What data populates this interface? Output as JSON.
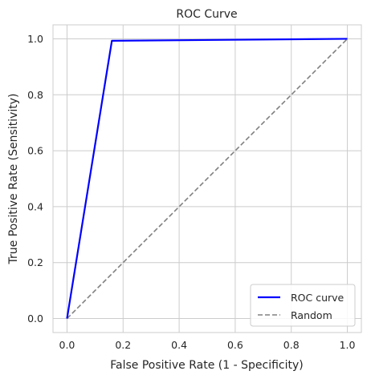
{
  "chart_data": {
    "type": "line",
    "title": "ROC Curve",
    "xlabel": "False Positive Rate (1 - Specificity)",
    "ylabel": "True Positive Rate (Sensitivity)",
    "xlim": [
      -0.05,
      1.05
    ],
    "ylim": [
      -0.05,
      1.05
    ],
    "xticks": [
      "0.0",
      "0.2",
      "0.4",
      "0.6",
      "0.8",
      "1.0"
    ],
    "yticks": [
      "0.0",
      "0.2",
      "0.4",
      "0.6",
      "0.8",
      "1.0"
    ],
    "grid": true,
    "legend_position": "lower-right",
    "series": [
      {
        "name": "ROC curve",
        "color": "#0000ff",
        "style": "solid",
        "x": [
          0.0,
          0.16,
          1.0
        ],
        "y": [
          0.0,
          0.993,
          1.0
        ]
      },
      {
        "name": "Random",
        "color": "#808080",
        "style": "dashed",
        "x": [
          0.0,
          1.0
        ],
        "y": [
          0.0,
          1.0
        ]
      }
    ]
  }
}
